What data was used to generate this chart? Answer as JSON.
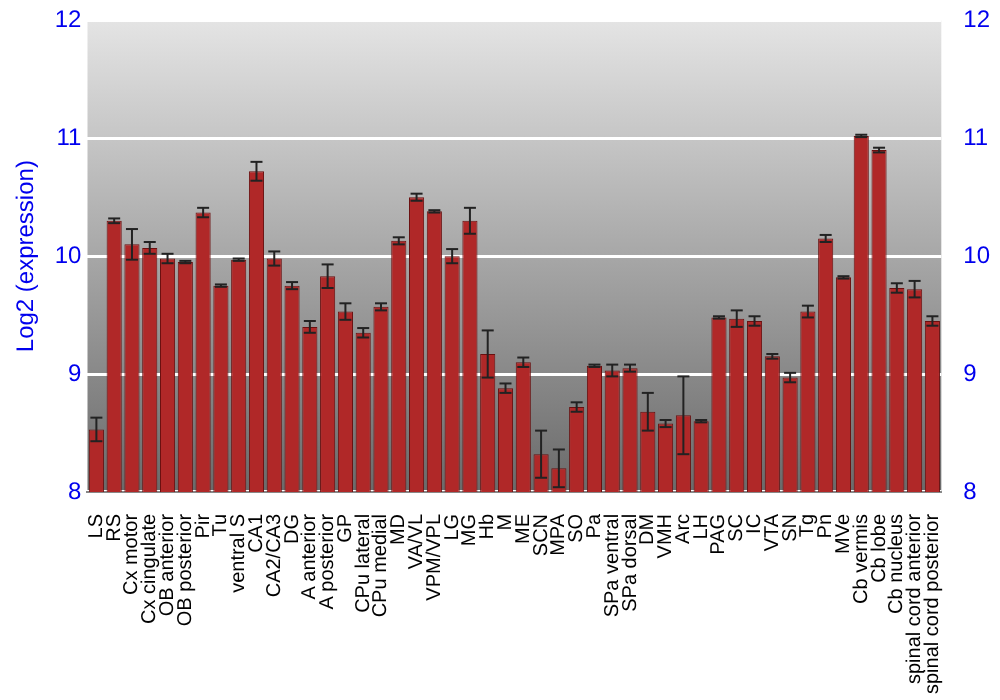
{
  "chart_data": {
    "type": "bar",
    "ylabel": "Log2 (expression)",
    "categories": [
      "LS",
      "RS",
      "Cx motor",
      "Cx cingulate",
      "OB anterior",
      "OB posterior",
      "Pir",
      "Tu",
      "ventral S",
      "CA1",
      "CA2/CA3",
      "DG",
      "A anterior",
      "A posterior",
      "GP",
      "CPu lateral",
      "CPu medial",
      "MD",
      "VA/VL",
      "VPM/VPL",
      "LG",
      "MG",
      "Hb",
      "M",
      "ME",
      "SCN",
      "MPA",
      "SO",
      "Pa",
      "SPa ventral",
      "SPa dorsal",
      "DM",
      "VMH",
      "Arc",
      "LH",
      "PAG",
      "SC",
      "IC",
      "VTA",
      "SN",
      "Tg",
      "Pn",
      "MVe",
      "Cb vermis",
      "Cb lobe",
      "Cb nucleus",
      "spinal cord anterior",
      "spinal cord posterior"
    ],
    "values": [
      8.53,
      10.3,
      10.1,
      10.07,
      9.98,
      9.95,
      10.37,
      9.75,
      9.97,
      10.72,
      9.98,
      9.75,
      9.4,
      9.83,
      9.53,
      9.35,
      9.57,
      10.13,
      10.5,
      10.38,
      10.0,
      10.3,
      9.17,
      8.88,
      9.1,
      8.32,
      8.2,
      8.72,
      9.07,
      9.03,
      9.05,
      8.68,
      8.58,
      8.65,
      8.6,
      9.48,
      9.47,
      9.45,
      9.15,
      8.97,
      9.53,
      10.15,
      9.82,
      11.02,
      10.9,
      9.73,
      9.72,
      9.45
    ],
    "errors": [
      0.1,
      0.02,
      0.13,
      0.05,
      0.04,
      0.01,
      0.04,
      0.01,
      0.01,
      0.08,
      0.06,
      0.03,
      0.05,
      0.1,
      0.07,
      0.04,
      0.03,
      0.03,
      0.03,
      0.01,
      0.06,
      0.11,
      0.2,
      0.04,
      0.04,
      0.2,
      0.16,
      0.04,
      0.01,
      0.05,
      0.03,
      0.16,
      0.03,
      0.33,
      0.01,
      0.01,
      0.07,
      0.04,
      0.02,
      0.04,
      0.05,
      0.03,
      0.01,
      0.01,
      0.02,
      0.04,
      0.07,
      0.04
    ],
    "color": "#b02828",
    "ylim": [
      8,
      12
    ],
    "yticks": [
      8,
      9,
      10,
      11,
      12
    ],
    "y2lim": [
      8,
      12
    ],
    "y2ticks": [
      8,
      9,
      10,
      11,
      12
    ],
    "grid": "y",
    "legend": false
  }
}
